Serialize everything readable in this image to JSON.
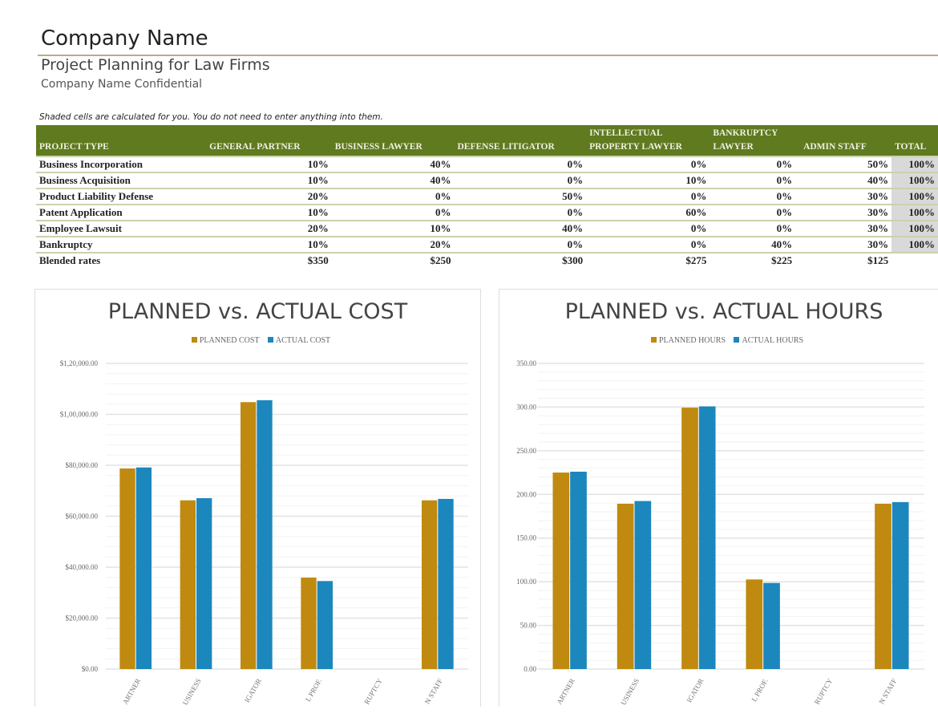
{
  "header": {
    "title": "Company Name",
    "subtitle": "Project Planning for Law Firms",
    "confidential": "Company Name Confidential",
    "note": "Shaded cells are calculated for you. You do not need to enter anything into them."
  },
  "table": {
    "columns": [
      "PROJECT TYPE",
      "GENERAL PARTNER",
      "BUSINESS LAWYER",
      "DEFENSE LITIGATOR",
      "INTELLECTUAL PROPERTY LAWYER",
      "BANKRUPTCY LAWYER",
      "ADMIN STAFF",
      "TOTAL"
    ],
    "rows": [
      [
        "Business Incorporation",
        "10%",
        "40%",
        "0%",
        "0%",
        "0%",
        "50%",
        "100%"
      ],
      [
        "Business Acquisition",
        "10%",
        "40%",
        "0%",
        "10%",
        "0%",
        "40%",
        "100%"
      ],
      [
        "Product Liability Defense",
        "20%",
        "0%",
        "50%",
        "0%",
        "0%",
        "30%",
        "100%"
      ],
      [
        "Patent Application",
        "10%",
        "0%",
        "0%",
        "60%",
        "0%",
        "30%",
        "100%"
      ],
      [
        "Employee Lawsuit",
        "20%",
        "10%",
        "40%",
        "0%",
        "0%",
        "30%",
        "100%"
      ],
      [
        "Bankruptcy",
        "10%",
        "20%",
        "0%",
        "0%",
        "40%",
        "30%",
        "100%"
      ]
    ],
    "blended": [
      "Blended rates",
      "$350",
      "$250",
      "$300",
      "$275",
      "$225",
      "$125"
    ]
  },
  "colors": {
    "planned": "#bf8a0f",
    "actual": "#1b87bd",
    "header": "#5f7a1f"
  },
  "chart_data": [
    {
      "type": "bar",
      "title": "PLANNED vs. ACTUAL COST",
      "legend_placement": "top",
      "categories": [
        "ARTNER",
        "USINESS",
        "IGATOR",
        "L PROF.",
        "RUPTCY",
        "N STAFF"
      ],
      "series": [
        {
          "name": "PLANNED COST",
          "values": [
            78750,
            66250,
            104800,
            35900,
            0,
            66250
          ]
        },
        {
          "name": "ACTUAL COST",
          "values": [
            79150,
            67100,
            105550,
            34550,
            0,
            66800
          ]
        }
      ],
      "ylim": [
        0,
        120000
      ],
      "yticks": [
        "$0.00",
        "$20,000.00",
        "$40,000.00",
        "$60,000.00",
        "$80,000.00",
        "$1,00,000.00",
        "$1,20,000.00"
      ],
      "grid": true
    },
    {
      "type": "bar",
      "title": "PLANNED vs. ACTUAL HOURS",
      "legend_placement": "top",
      "categories": [
        "ARTNER",
        "USINESS",
        "IGATOR",
        "L PROF.",
        "RUPTCY",
        "N STAFF"
      ],
      "series": [
        {
          "name": "PLANNED HOURS",
          "values": [
            225,
            189.3,
            299.3,
            102.6,
            0,
            189.3
          ]
        },
        {
          "name": "ACTUAL HOURS",
          "values": [
            226,
            192.4,
            300.8,
            98.6,
            0,
            191.2
          ]
        }
      ],
      "ylim": [
        0,
        350
      ],
      "yticks": [
        "0.00",
        "50.00",
        "100.00",
        "150.00",
        "200.00",
        "250.00",
        "300.00",
        "350.00"
      ],
      "grid": true
    }
  ]
}
